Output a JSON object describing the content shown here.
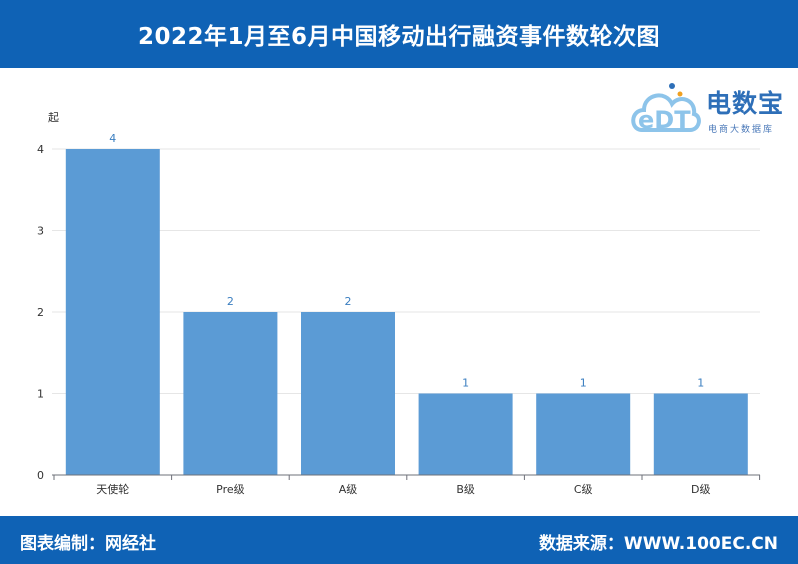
{
  "header": {
    "title": "2022年1月至6月中国移动出行融资事件数轮次图"
  },
  "footer": {
    "left": "图表编制：网经社",
    "right": "数据来源：WWW.100EC.CN"
  },
  "logo": {
    "name": "电数宝",
    "subtitle": "电商大数据库",
    "mark_text": "eDT",
    "mark_color": "#8dc4ea",
    "name_color": "#2e6fb8"
  },
  "chart_data": {
    "type": "bar",
    "unit_label": "起",
    "categories": [
      "天使轮",
      "Pre级",
      "A级",
      "B级",
      "C级",
      "D级"
    ],
    "values": [
      4,
      2,
      2,
      1,
      1,
      1
    ],
    "ylim": [
      0,
      4
    ],
    "yticks": [
      0,
      1,
      2,
      3,
      4
    ],
    "bar_color": "#5b9bd5",
    "label_color": "#3a7ec0",
    "grid": true,
    "legend": "none"
  }
}
